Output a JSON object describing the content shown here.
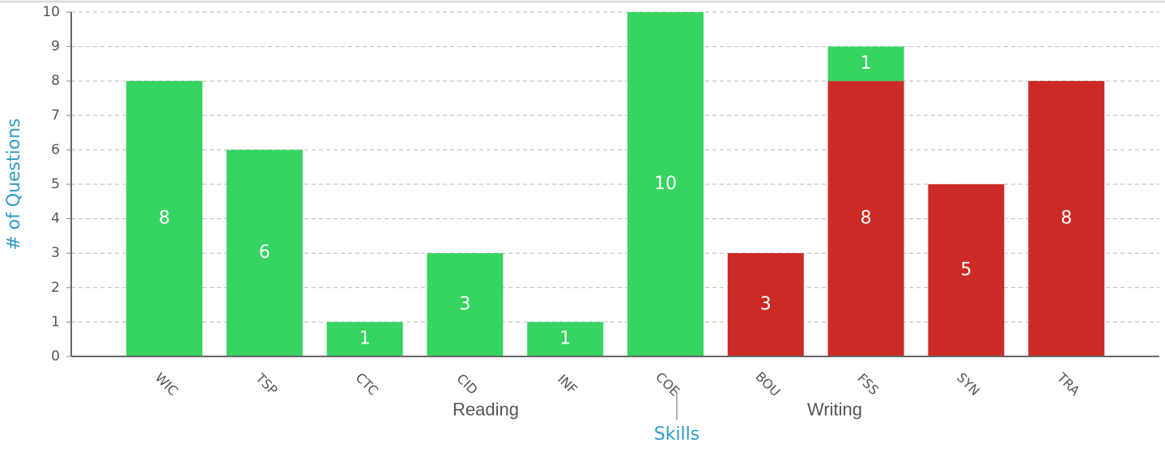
{
  "chart_data": {
    "type": "stacked_bar",
    "categories": [
      "WIC",
      "TSP",
      "CTC",
      "CID",
      "INF",
      "COE",
      "BOU",
      "FSS",
      "SYN",
      "TRA"
    ],
    "groups": [
      "Reading",
      "Writing"
    ],
    "series": [
      {
        "color": "#cc2a24",
        "values": [
          0,
          0,
          0,
          0,
          0,
          0,
          3,
          8,
          5,
          8
        ]
      },
      {
        "color": "#36d461",
        "values": [
          8,
          6,
          1,
          3,
          1,
          10,
          0,
          1,
          0,
          0
        ]
      }
    ],
    "x_label": "Skills",
    "y_label": "# of Questions",
    "ylim": [
      0,
      10
    ],
    "yticks": [
      0,
      1,
      2,
      3,
      4,
      5,
      6,
      7,
      8,
      9,
      10
    ],
    "grid": true
  }
}
